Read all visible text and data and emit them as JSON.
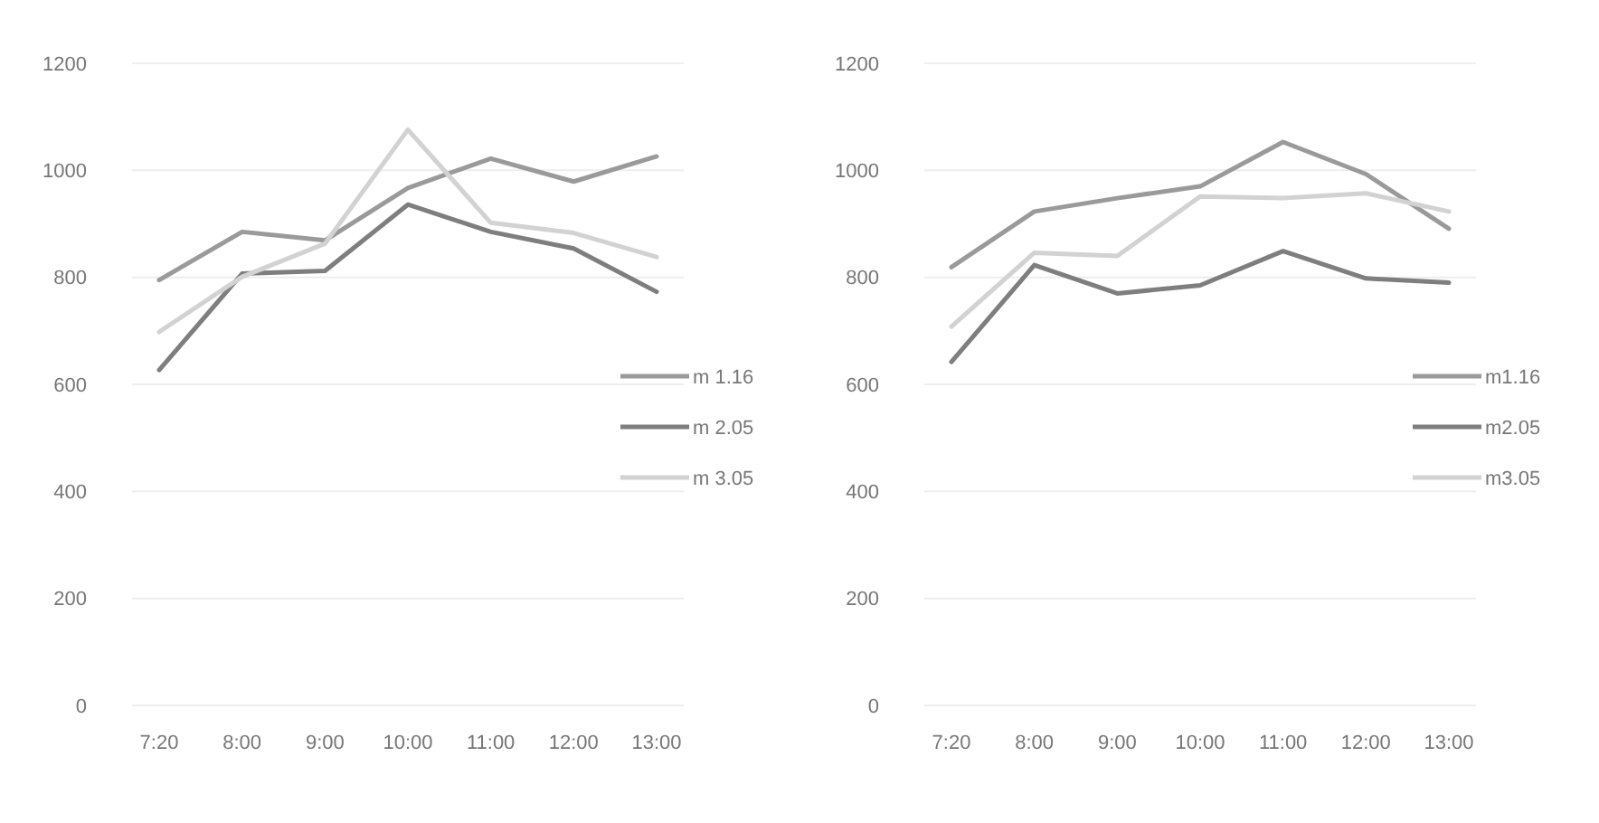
{
  "chart_data": [
    {
      "type": "line",
      "categories": [
        "7:20",
        "8:00",
        "9:00",
        "10:00",
        "11:00",
        "12:00",
        "13:00"
      ],
      "ylim": [
        0,
        1200
      ],
      "yticks": [
        0,
        200,
        400,
        600,
        800,
        1000,
        1200
      ],
      "grid": "y",
      "legend": "right",
      "series": [
        {
          "name": "m 1.16",
          "color": "#9a9a9a",
          "values": [
            795,
            885,
            869,
            967,
            1022,
            979,
            1026
          ]
        },
        {
          "name": "m 2.05",
          "color": "#7e7e7e",
          "values": [
            627,
            807,
            812,
            936,
            885,
            854,
            773
          ]
        },
        {
          "name": "m 3.05",
          "color": "#d2d2d2",
          "values": [
            698,
            801,
            863,
            1076,
            902,
            883,
            838
          ]
        }
      ]
    },
    {
      "type": "line",
      "categories": [
        "7:20",
        "8:00",
        "9:00",
        "10:00",
        "11:00",
        "12:00",
        "13:00"
      ],
      "ylim": [
        0,
        1200
      ],
      "yticks": [
        0,
        200,
        400,
        600,
        800,
        1000,
        1200
      ],
      "grid": "y",
      "legend": "right",
      "series": [
        {
          "name": "m1.16",
          "color": "#9a9a9a",
          "values": [
            819,
            923,
            948,
            970,
            1053,
            993,
            891
          ]
        },
        {
          "name": "m2.05",
          "color": "#7e7e7e",
          "values": [
            642,
            823,
            770,
            785,
            849,
            798,
            790
          ]
        },
        {
          "name": "m3.05",
          "color": "#d2d2d2",
          "values": [
            708,
            846,
            840,
            951,
            948,
            957,
            923
          ]
        }
      ]
    }
  ]
}
